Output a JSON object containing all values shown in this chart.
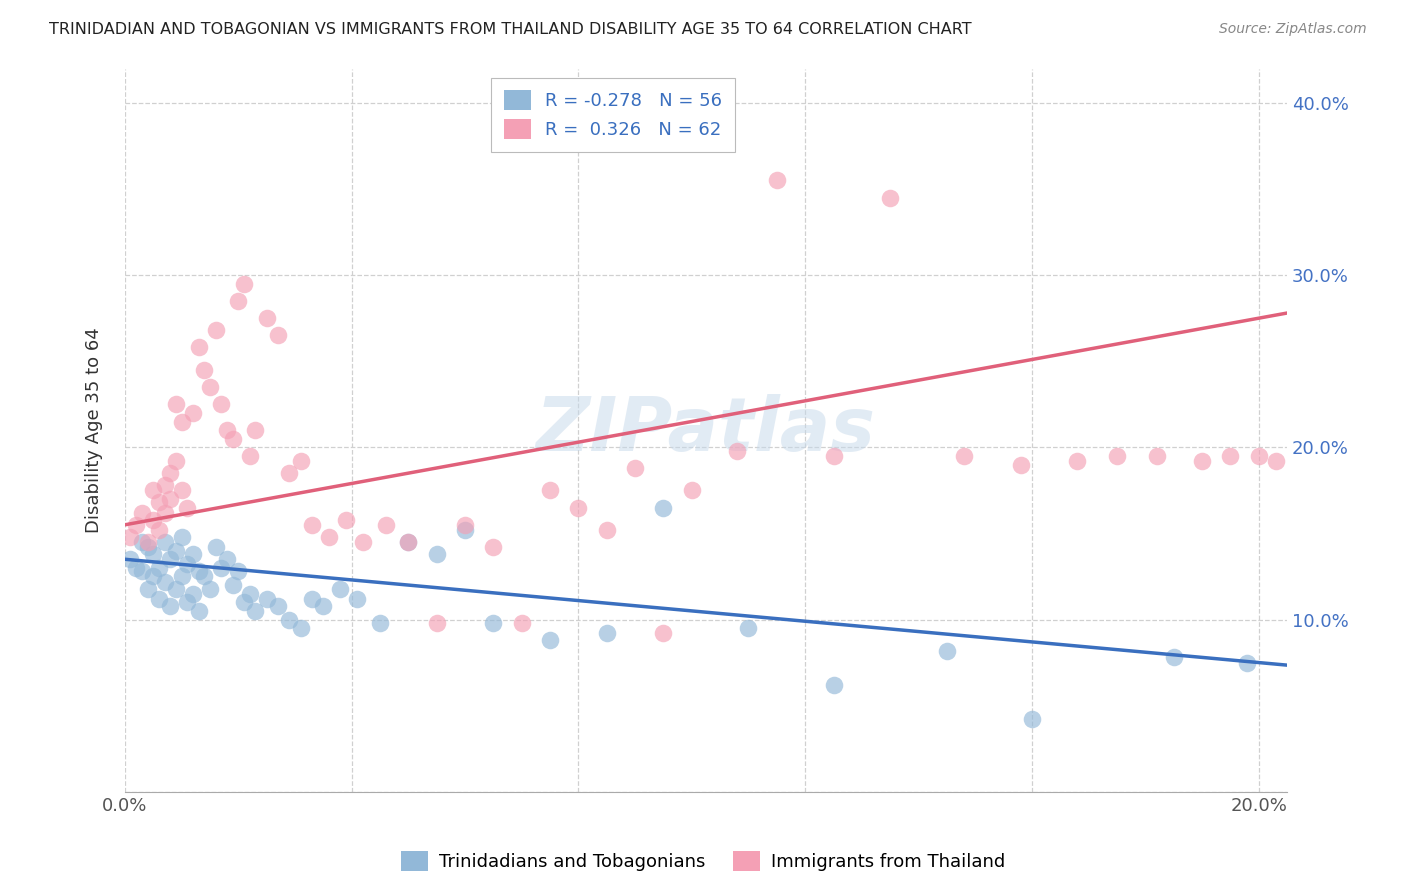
{
  "title": "TRINIDADIAN AND TOBAGONIAN VS IMMIGRANTS FROM THAILAND DISABILITY AGE 35 TO 64 CORRELATION CHART",
  "source": "Source: ZipAtlas.com",
  "ylabel": "Disability Age 35 to 64",
  "xlim": [
    0.0,
    0.205
  ],
  "ylim": [
    0.0,
    0.42
  ],
  "blue_R": -0.278,
  "blue_N": 56,
  "pink_R": 0.326,
  "pink_N": 62,
  "blue_label": "Trinidadians and Tobagonians",
  "pink_label": "Immigrants from Thailand",
  "blue_color": "#92b8d8",
  "pink_color": "#f4a0b5",
  "blue_line_color": "#3a6fbf",
  "pink_line_color": "#e0607a",
  "watermark": "ZIPatlas",
  "blue_scatter_x": [
    0.001,
    0.002,
    0.003,
    0.003,
    0.004,
    0.004,
    0.005,
    0.005,
    0.006,
    0.006,
    0.007,
    0.007,
    0.008,
    0.008,
    0.009,
    0.009,
    0.01,
    0.01,
    0.011,
    0.011,
    0.012,
    0.012,
    0.013,
    0.013,
    0.014,
    0.015,
    0.016,
    0.017,
    0.018,
    0.019,
    0.02,
    0.021,
    0.022,
    0.023,
    0.025,
    0.027,
    0.029,
    0.031,
    0.033,
    0.035,
    0.038,
    0.041,
    0.045,
    0.05,
    0.055,
    0.06,
    0.065,
    0.075,
    0.085,
    0.095,
    0.11,
    0.125,
    0.145,
    0.16,
    0.185,
    0.198
  ],
  "blue_scatter_y": [
    0.135,
    0.13,
    0.145,
    0.128,
    0.142,
    0.118,
    0.138,
    0.125,
    0.13,
    0.112,
    0.145,
    0.122,
    0.135,
    0.108,
    0.14,
    0.118,
    0.148,
    0.125,
    0.132,
    0.11,
    0.138,
    0.115,
    0.128,
    0.105,
    0.125,
    0.118,
    0.142,
    0.13,
    0.135,
    0.12,
    0.128,
    0.11,
    0.115,
    0.105,
    0.112,
    0.108,
    0.1,
    0.095,
    0.112,
    0.108,
    0.118,
    0.112,
    0.098,
    0.145,
    0.138,
    0.152,
    0.098,
    0.088,
    0.092,
    0.165,
    0.095,
    0.062,
    0.082,
    0.042,
    0.078,
    0.075
  ],
  "pink_scatter_x": [
    0.001,
    0.002,
    0.003,
    0.004,
    0.005,
    0.005,
    0.006,
    0.006,
    0.007,
    0.007,
    0.008,
    0.008,
    0.009,
    0.009,
    0.01,
    0.01,
    0.011,
    0.012,
    0.013,
    0.014,
    0.015,
    0.016,
    0.017,
    0.018,
    0.019,
    0.02,
    0.021,
    0.022,
    0.023,
    0.025,
    0.027,
    0.029,
    0.031,
    0.033,
    0.036,
    0.039,
    0.042,
    0.046,
    0.05,
    0.055,
    0.06,
    0.065,
    0.07,
    0.075,
    0.08,
    0.085,
    0.09,
    0.095,
    0.1,
    0.108,
    0.115,
    0.125,
    0.135,
    0.148,
    0.158,
    0.168,
    0.175,
    0.182,
    0.19,
    0.195,
    0.2,
    0.203
  ],
  "pink_scatter_y": [
    0.148,
    0.155,
    0.162,
    0.145,
    0.175,
    0.158,
    0.168,
    0.152,
    0.178,
    0.162,
    0.185,
    0.17,
    0.225,
    0.192,
    0.215,
    0.175,
    0.165,
    0.22,
    0.258,
    0.245,
    0.235,
    0.268,
    0.225,
    0.21,
    0.205,
    0.285,
    0.295,
    0.195,
    0.21,
    0.275,
    0.265,
    0.185,
    0.192,
    0.155,
    0.148,
    0.158,
    0.145,
    0.155,
    0.145,
    0.098,
    0.155,
    0.142,
    0.098,
    0.175,
    0.165,
    0.152,
    0.188,
    0.092,
    0.175,
    0.198,
    0.355,
    0.195,
    0.345,
    0.195,
    0.19,
    0.192,
    0.195,
    0.195,
    0.192,
    0.195,
    0.195,
    0.192
  ]
}
